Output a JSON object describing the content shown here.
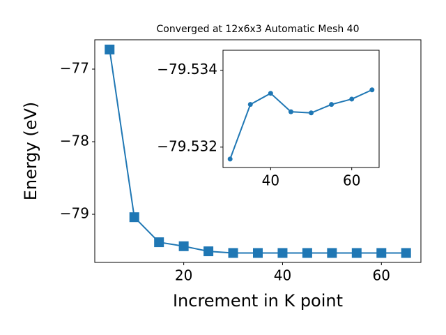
{
  "chart_data": [
    {
      "type": "line",
      "title": "Converged at 12x6x3 Automatic Mesh 40",
      "xlabel": "Increment in K point",
      "ylabel": "Energy (eV)",
      "marker": "square",
      "color": "#1f77b4",
      "x": [
        5,
        10,
        15,
        20,
        25,
        30,
        35,
        40,
        45,
        50,
        55,
        60,
        65
      ],
      "values": [
        -76.73,
        -79.04,
        -79.385,
        -79.44,
        -79.51,
        -79.533,
        -79.533,
        -79.533,
        -79.533,
        -79.533,
        -79.533,
        -79.533,
        -79.533
      ],
      "xlim": [
        2,
        68
      ],
      "ylim": [
        -79.663,
        -76.596
      ],
      "xticks": [
        20,
        40,
        60
      ],
      "yticks": [
        {
          "value": -79,
          "label": "−79"
        },
        {
          "value": -78,
          "label": "−78"
        },
        {
          "value": -77,
          "label": "−77"
        }
      ]
    },
    {
      "type": "line",
      "marker": "circle",
      "color": "#1f77b4",
      "x": [
        30,
        35,
        40,
        45,
        50,
        55,
        60,
        65
      ],
      "values": [
        -79.53169,
        -79.53311,
        -79.5334,
        -79.53292,
        -79.53289,
        -79.53311,
        -79.53325,
        -79.53349
      ],
      "xlim": [
        28.25,
        66.75
      ],
      "ylim": [
        -79.53147,
        -79.53452
      ],
      "xticks": [
        40,
        60
      ],
      "yticks": [
        {
          "value": -79.532,
          "label": "−79.532"
        },
        {
          "value": -79.534,
          "label": "−79.534"
        }
      ]
    }
  ]
}
